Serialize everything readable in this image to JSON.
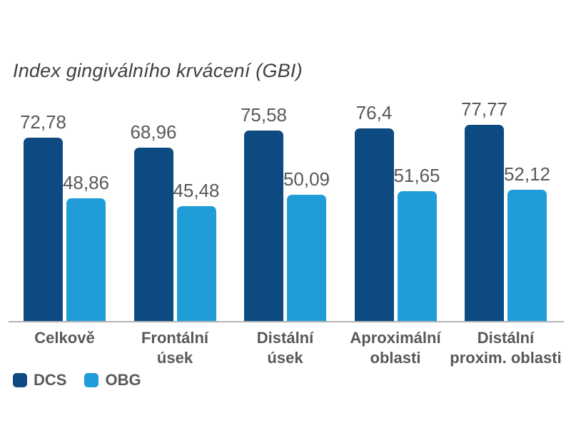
{
  "title": "Index gingiválního krvácení (GBI)",
  "chart_data": {
    "type": "bar",
    "title": "Index gingiválního krvácení (GBI)",
    "categories": [
      "Celkově",
      "Frontální\núsek",
      "Distální\núsek",
      "Aproximální\noblasti",
      "Distální\nproxim. oblasti"
    ],
    "series": [
      {
        "name": "DCS",
        "color": "#0d4a82",
        "values": [
          72.78,
          68.96,
          75.58,
          76.4,
          77.77
        ]
      },
      {
        "name": "OBG",
        "color": "#209dd8",
        "values": [
          48.86,
          45.48,
          50.09,
          51.65,
          52.12
        ]
      }
    ],
    "value_labels": [
      [
        "72,78",
        "68,96",
        "75,58",
        "76,4",
        "77,77"
      ],
      [
        "48,86",
        "45,48",
        "50,09",
        "51,65",
        "52,12"
      ]
    ],
    "decimal_separator": ",",
    "xlabel": "",
    "ylabel": "",
    "ylim": [
      0,
      85
    ],
    "grid": false,
    "axis_line_color": "#b3b3b3",
    "legend_position": "bottom-left"
  },
  "legend": {
    "items": [
      {
        "label": "DCS",
        "color": "#0d4a82"
      },
      {
        "label": "OBG",
        "color": "#209dd8"
      }
    ]
  },
  "colors": {
    "background": "#ffffff",
    "title_text": "#404040",
    "value_label_text": "#595959",
    "category_label_text": "#57585a",
    "dcs_bar": "#0d4a82",
    "obg_bar": "#209dd8"
  }
}
